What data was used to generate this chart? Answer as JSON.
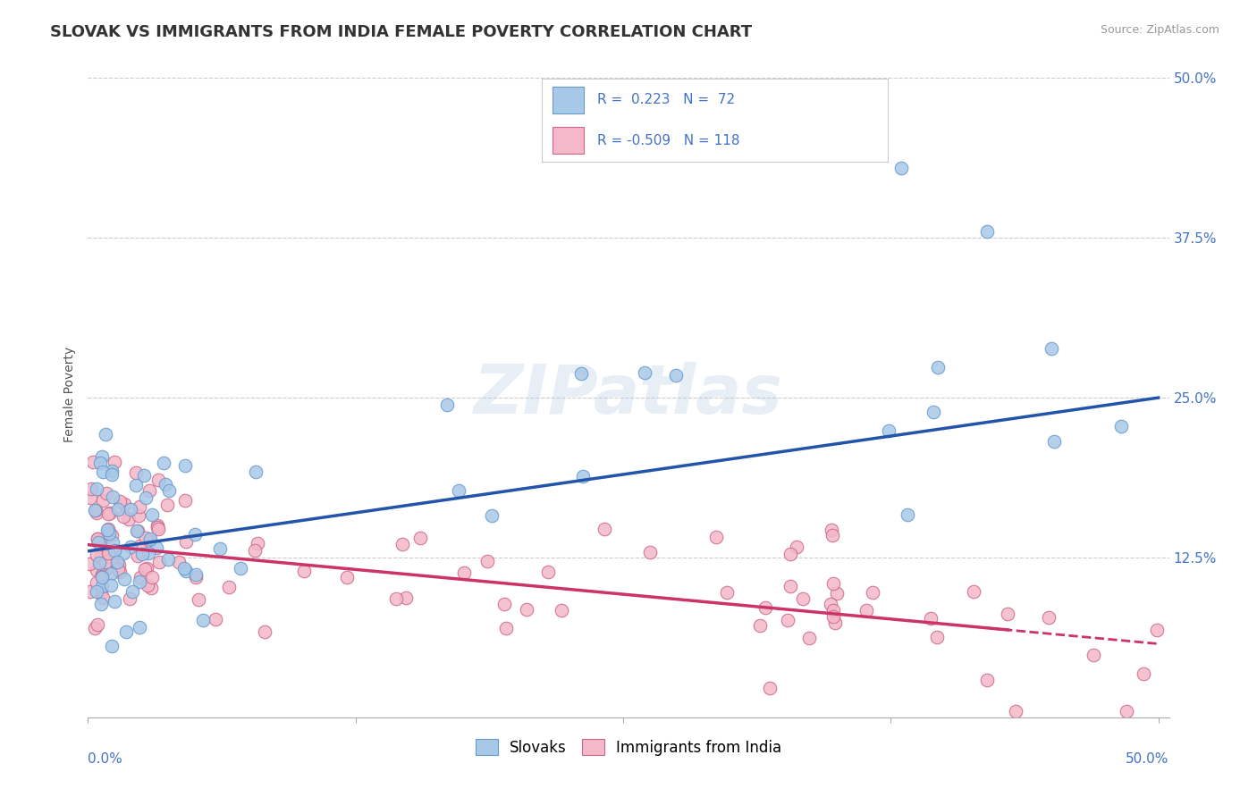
{
  "title": "SLOVAK VS IMMIGRANTS FROM INDIA FEMALE POVERTY CORRELATION CHART",
  "source": "Source: ZipAtlas.com",
  "ylabel": "Female Poverty",
  "ytick_labels": [
    "12.5%",
    "25.0%",
    "37.5%",
    "50.0%"
  ],
  "ytick_values": [
    0.125,
    0.25,
    0.375,
    0.5
  ],
  "xlim": [
    0.0,
    0.5
  ],
  "ylim": [
    0.0,
    0.5
  ],
  "blue_color": "#a8c8e8",
  "blue_edge_color": "#6699cc",
  "pink_color": "#f4b8c8",
  "pink_edge_color": "#cc6688",
  "blue_line_color": "#2255aa",
  "pink_line_color": "#cc3366",
  "background_color": "#ffffff",
  "title_fontsize": 13,
  "axis_label_fontsize": 10,
  "tick_fontsize": 11,
  "legend_fontsize": 12,
  "blue_intercept": 0.13,
  "blue_slope": 0.24,
  "pink_intercept": 0.135,
  "pink_slope": -0.155
}
